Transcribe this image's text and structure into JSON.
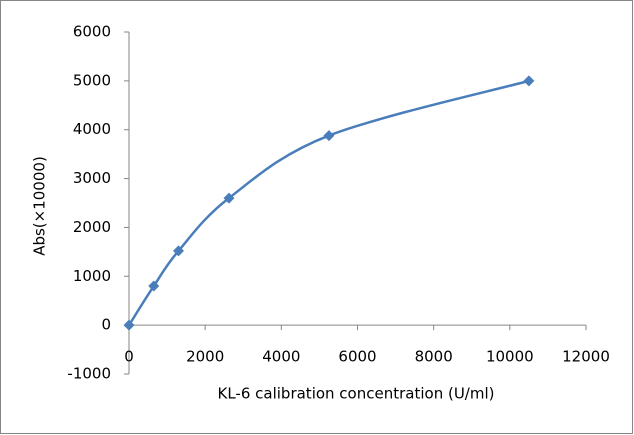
{
  "chart_data": {
    "type": "scatter",
    "x_label": "KL-6 calibration concentration (U/ml)",
    "y_label": "Abs(×10000)",
    "series": [
      {
        "color": "#4a7ebb",
        "x": [
          0,
          650,
          1300,
          2625,
          5250,
          10500
        ],
        "values": [
          0,
          800,
          1520,
          2600,
          3880,
          5000
        ]
      }
    ],
    "smooth": true,
    "marker": "diamond",
    "xlim": [
      0,
      12000
    ],
    "xticks": [
      0,
      2000,
      4000,
      6000,
      8000,
      10000,
      12000
    ],
    "ylim": [
      -1000,
      6000
    ],
    "yticks": [
      -1000,
      0,
      1000,
      2000,
      3000,
      4000,
      5000,
      6000
    ],
    "grid": false
  }
}
